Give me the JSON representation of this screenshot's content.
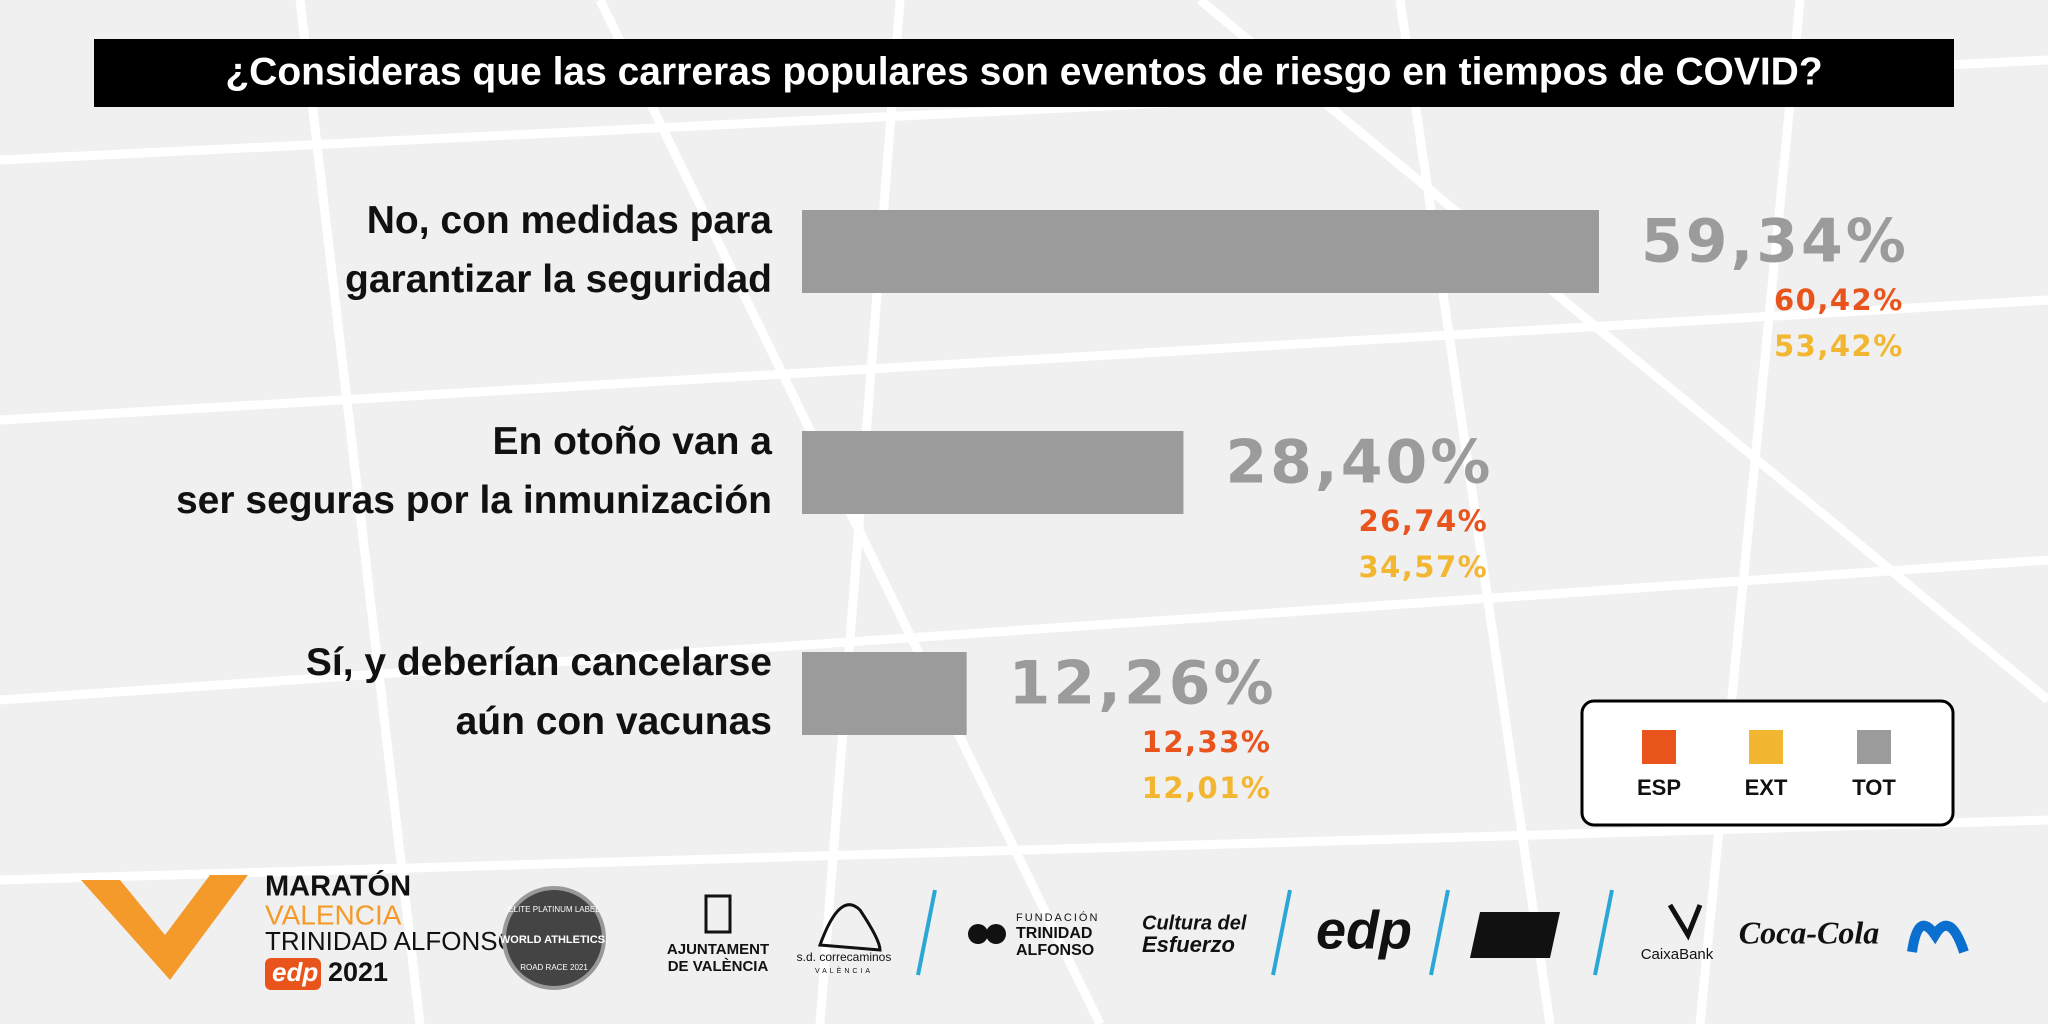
{
  "chart_data": {
    "type": "bar",
    "title": "¿Consideras que las carreras populares son eventos de riesgo en tiempos de COVID?",
    "categories": [
      "No, con medidas para\ngarantizar la seguridad",
      "En otoño van a\nser seguras por la inmunización",
      "Sí, y deberían cancelarse\naún con vacunas"
    ],
    "series": [
      {
        "name": "ESP",
        "color": "#e8541c",
        "values": [
          60.42,
          26.74,
          12.33
        ],
        "value_labels": [
          "60,42%",
          "26,74%",
          "12,33%"
        ]
      },
      {
        "name": "EXT",
        "color": "#f2b631",
        "values": [
          53.42,
          34.57,
          12.01
        ],
        "value_labels": [
          "53,42%",
          "34,57%",
          "12,01%"
        ]
      },
      {
        "name": "TOT",
        "color": "#9b9b9b",
        "values": [
          59.34,
          28.4,
          12.26
        ],
        "value_labels": [
          "59,34%",
          "28,40%",
          "12,26%"
        ]
      }
    ]
  },
  "footer": {
    "maraton": "MARATÓN",
    "valencia": "VALENCIA",
    "trinidad": "TRINIDAD ALFONSO",
    "edp": "edp",
    "year": "2021",
    "label_top": "ELITE PLATINUM LABEL",
    "label_mid": "WORLD ATHLETICS.",
    "label_bot": "ROAD RACE 2021",
    "ajuntament": "AJUNTAMENT",
    "de_valencia": "DE VALÈNCIA",
    "correcaminos": "s.d. correcaminos",
    "correcaminos_city": "VALÈNCIA",
    "fundacion": "FUNDACIÓN",
    "fund_trinidad": "TRINIDAD",
    "fund_alfonso": "ALFONSO",
    "cultura": "Cultura del",
    "esfuerzo": "Esfuerzo",
    "edp2": "edp",
    "caixabank": "CaixaBank",
    "cocacola": "Coca-Cola"
  }
}
